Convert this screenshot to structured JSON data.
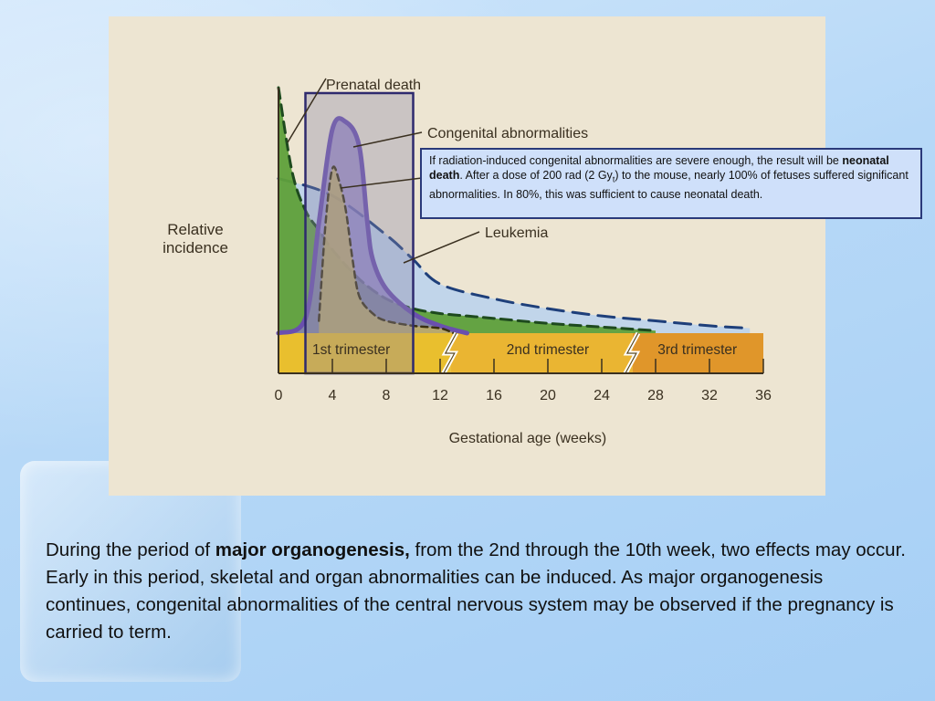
{
  "chart_data": {
    "type": "area",
    "xlabel": "Gestational age (weeks)",
    "ylabel": "Relative incidence",
    "x_ticks": [
      0,
      4,
      8,
      12,
      16,
      20,
      24,
      28,
      32,
      36
    ],
    "xlim": [
      0,
      36
    ],
    "ylim": [
      0,
      1
    ],
    "highlight_range": [
      2,
      10
    ],
    "trimesters": [
      "1st trimester",
      "2nd trimester",
      "3rd trimester"
    ],
    "series": [
      {
        "name": "Prenatal death",
        "color": "#5fa03a",
        "x": [
          0,
          1,
          2,
          3,
          4,
          6,
          8,
          10,
          12,
          14,
          16,
          20,
          24,
          28
        ],
        "y": [
          1.0,
          0.66,
          0.5,
          0.42,
          0.34,
          0.22,
          0.14,
          0.1,
          0.08,
          0.07,
          0.06,
          0.04,
          0.025,
          0.01
        ]
      },
      {
        "name": "Leukemia",
        "color": "#b8d2ee",
        "x": [
          0,
          4,
          8,
          10,
          12,
          16,
          20,
          24,
          28,
          32,
          35
        ],
        "y": [
          0.63,
          0.56,
          0.4,
          0.3,
          0.2,
          0.14,
          0.1,
          0.07,
          0.05,
          0.03,
          0.02
        ]
      },
      {
        "name": "Congenital abnormalities",
        "color": "#8e7cc3",
        "x": [
          0,
          2,
          3,
          4,
          5,
          6,
          6.6,
          7,
          8,
          10,
          12,
          14
        ],
        "y": [
          0,
          0.06,
          0.45,
          0.83,
          0.86,
          0.76,
          0.45,
          0.3,
          0.18,
          0.08,
          0.03,
          0
        ]
      },
      {
        "name": "Neonatal death",
        "color": "#c4b060",
        "x": [
          3,
          3.5,
          4,
          4.5,
          5,
          5.5,
          6,
          7,
          8,
          10,
          12,
          13
        ],
        "y": [
          0.05,
          0.45,
          0.67,
          0.62,
          0.5,
          0.3,
          0.15,
          0.08,
          0.05,
          0.03,
          0.02,
          0
        ]
      }
    ],
    "annotations": [
      "Prenatal death",
      "Congenital abnormalities",
      "Leukemia"
    ]
  },
  "callout": {
    "line1": "If radiation-induced congenital abnormalities are severe enough, the result will be ",
    "bold": "neonatal death",
    "line2": ". After a dose of 200 rad (2 Gy",
    "sub": "t",
    "line3": ") to the mouse, nearly 100% of fetuses suffered significant abnormalities. In 80%, this was sufficient to cause neonatal death."
  },
  "body": {
    "before": "During the period of ",
    "bold": "major organogenesis,",
    "after": " from the 2nd through the 10th week, two effects may occur. Early in this period, skeletal and organ abnormalities can be induced. As major organogenesis continues, congenital abnormalities of the central nervous system may be observed if the pregnancy is carried to term."
  }
}
